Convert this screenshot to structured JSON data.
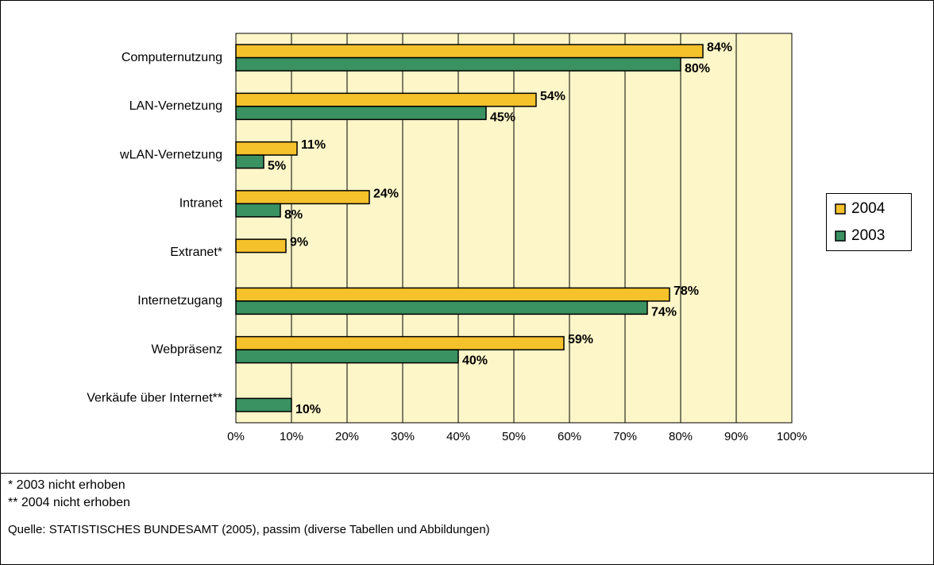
{
  "chart_data": {
    "type": "bar",
    "orientation": "horizontal",
    "categories": [
      "Computernutzung",
      "LAN-Vernetzung",
      "wLAN-Vernetzung",
      "Intranet",
      "Extranet*",
      "Internetzugang",
      "Webpräsenz",
      "Verkäufe über Internet**"
    ],
    "series": [
      {
        "name": "2004",
        "color": "#f5c22b",
        "values": [
          84,
          54,
          11,
          24,
          9,
          78,
          59,
          null
        ],
        "value_labels": [
          "84%",
          "54%",
          "11%",
          "24%",
          "9%",
          "78%",
          "59%",
          null
        ]
      },
      {
        "name": "2003",
        "color": "#3a9161",
        "values": [
          80,
          45,
          5,
          8,
          null,
          74,
          40,
          10
        ],
        "value_labels": [
          "80%",
          "45%",
          "5%",
          "8%",
          null,
          "74%",
          "40%",
          "10%"
        ]
      }
    ],
    "xlim": [
      0,
      100
    ],
    "xticks": [
      {
        "value": 0,
        "label": "0%"
      },
      {
        "value": 10,
        "label": "10%"
      },
      {
        "value": 20,
        "label": "20%"
      },
      {
        "value": 30,
        "label": "30%"
      },
      {
        "value": 40,
        "label": "40%"
      },
      {
        "value": 50,
        "label": "50%"
      },
      {
        "value": 60,
        "label": "60%"
      },
      {
        "value": 70,
        "label": "70%"
      },
      {
        "value": 80,
        "label": "80%"
      },
      {
        "value": 90,
        "label": "90%"
      },
      {
        "value": 100,
        "label": "100%"
      }
    ],
    "grid": true,
    "legend": "right",
    "footnotes": [
      "*  2003 nicht erhoben",
      "** 2004 nicht erhoben"
    ],
    "source": "Quelle: STATISTISCHES BUNDESAMT (2005), passim (diverse Tabellen und Abbildungen)"
  }
}
